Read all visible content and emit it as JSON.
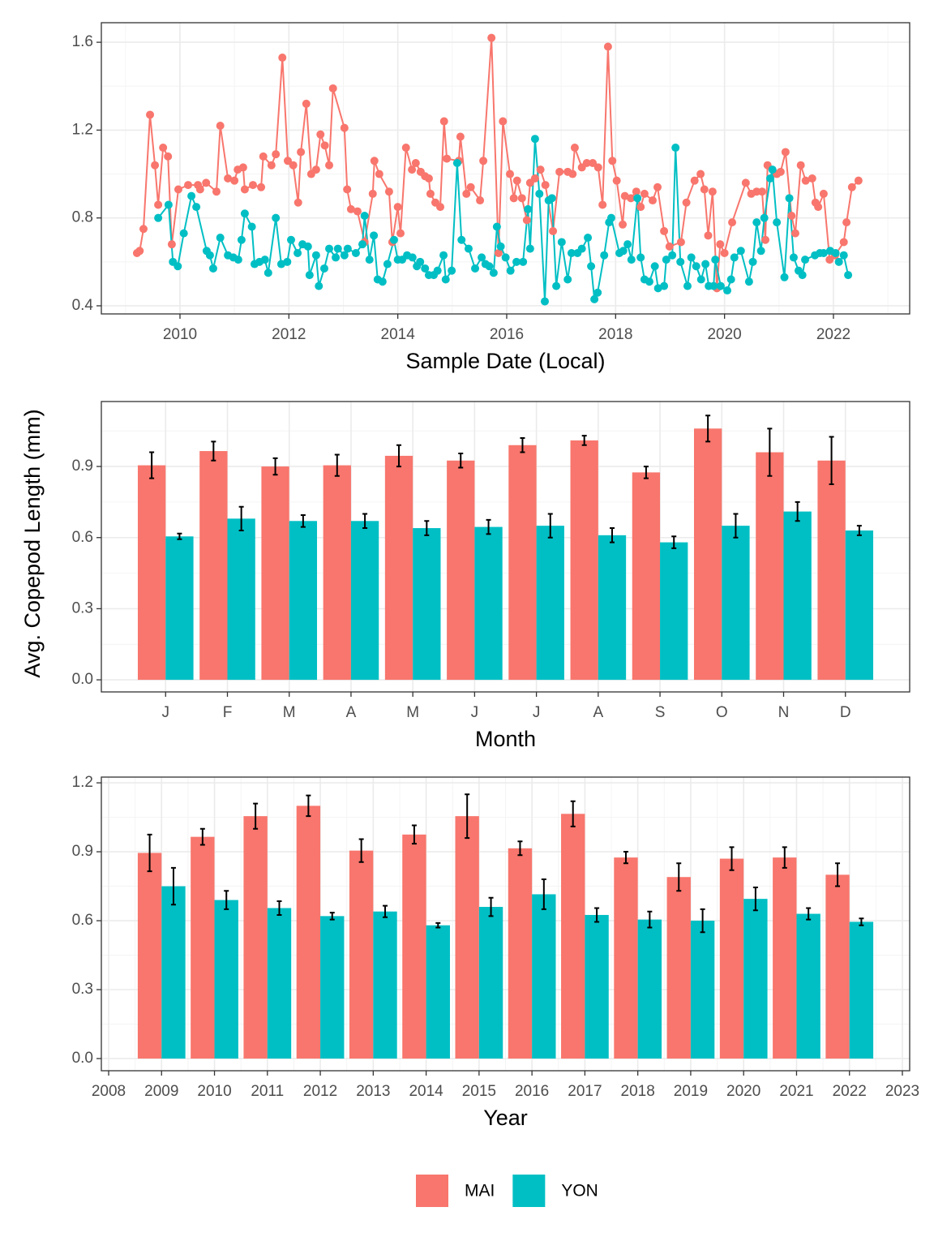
{
  "chart_data": [
    {
      "type": "line",
      "xlabel": "Sample Date (Local)",
      "xlim": [
        2008.556,
        2023.4
      ],
      "xticks": [
        2010,
        2012,
        2014,
        2016,
        2018,
        2020,
        2022
      ],
      "ylim": [
        0.363,
        1.689
      ],
      "yticks": [
        0.4,
        0.8,
        1.2,
        1.6
      ],
      "grid": true,
      "series": [
        {
          "color": "#F8766D",
          "x": [
            2009.21,
            2009.26,
            2009.33,
            2009.45,
            2009.54,
            2009.6,
            2009.69,
            2009.78,
            2009.85,
            2009.97,
            2010.15,
            2010.33,
            2010.37,
            2010.48,
            2010.67,
            2010.74,
            2010.88,
            2011.0,
            2011.06,
            2011.16,
            2011.19,
            2011.34,
            2011.49,
            2011.53,
            2011.68,
            2011.76,
            2011.88,
            2011.98,
            2012.08,
            2012.17,
            2012.22,
            2012.32,
            2012.41,
            2012.5,
            2012.58,
            2012.66,
            2012.74,
            2012.81,
            2013.02,
            2013.07,
            2013.14,
            2013.26,
            2013.39,
            2013.54,
            2013.57,
            2013.66,
            2013.84,
            2013.9,
            2014.0,
            2014.05,
            2014.15,
            2014.26,
            2014.33,
            2014.42,
            2014.5,
            2014.57,
            2014.6,
            2014.69,
            2014.78,
            2014.85,
            2014.9,
            2015.12,
            2015.15,
            2015.26,
            2015.34,
            2015.51,
            2015.57,
            2015.72,
            2015.85,
            2015.93,
            2016.06,
            2016.13,
            2016.19,
            2016.28,
            2016.37,
            2016.43,
            2016.52,
            2016.62,
            2016.71,
            2016.85,
            2016.97,
            2017.12,
            2017.21,
            2017.25,
            2017.38,
            2017.47,
            2017.58,
            2017.68,
            2017.76,
            2017.86,
            2017.94,
            2018.02,
            2018.13,
            2018.17,
            2018.28,
            2018.38,
            2018.46,
            2018.53,
            2018.68,
            2018.77,
            2018.89,
            2018.99,
            2019.2,
            2019.3,
            2019.45,
            2019.56,
            2019.63,
            2019.7,
            2019.78,
            2019.86,
            2019.92,
            2020.0,
            2020.14,
            2020.39,
            2020.49,
            2020.59,
            2020.69,
            2020.75,
            2020.79,
            2020.96,
            2021.03,
            2021.12,
            2021.23,
            2021.3,
            2021.4,
            2021.49,
            2021.61,
            2021.67,
            2021.72,
            2021.82,
            2021.93,
            2022.03,
            2022.19,
            2022.24,
            2022.34,
            2022.46
          ],
          "values": [
            0.64,
            0.65,
            0.75,
            1.27,
            1.04,
            0.86,
            1.12,
            1.08,
            0.68,
            0.93,
            0.95,
            0.95,
            0.93,
            0.96,
            0.92,
            1.22,
            0.98,
            0.97,
            1.02,
            1.03,
            0.93,
            0.95,
            0.94,
            1.08,
            1.04,
            1.09,
            1.53,
            1.06,
            1.04,
            0.87,
            1.1,
            1.32,
            1.0,
            1.02,
            1.18,
            1.13,
            1.04,
            1.39,
            1.21,
            0.93,
            0.84,
            0.83,
            0.69,
            0.91,
            1.06,
            1.0,
            0.92,
            0.69,
            0.85,
            0.73,
            1.12,
            1.02,
            1.05,
            1.01,
            0.99,
            0.98,
            0.91,
            0.87,
            0.85,
            1.24,
            1.07,
            1.06,
            1.17,
            0.91,
            0.94,
            0.88,
            1.06,
            1.62,
            0.64,
            1.24,
            1.0,
            0.89,
            0.97,
            0.89,
            0.79,
            0.96,
            0.98,
            1.02,
            0.95,
            0.74,
            1.01,
            1.01,
            1.0,
            1.12,
            1.03,
            1.05,
            1.05,
            1.03,
            0.86,
            1.58,
            1.06,
            0.97,
            0.77,
            0.9,
            0.89,
            0.92,
            0.85,
            0.91,
            0.88,
            0.94,
            0.74,
            0.67,
            0.69,
            0.87,
            0.97,
            1.0,
            0.93,
            0.72,
            0.92,
            0.48,
            0.68,
            0.64,
            0.78,
            0.96,
            0.91,
            0.92,
            0.92,
            0.7,
            1.04,
            1.0,
            1.01,
            1.1,
            0.81,
            0.73,
            1.04,
            0.97,
            0.98,
            0.87,
            0.85,
            0.91,
            0.61,
            0.63,
            0.69,
            0.78,
            0.94,
            0.97
          ]
        },
        {
          "color": "#00BFC4",
          "x": [
            2009.6,
            2009.79,
            2009.87,
            2009.96,
            2010.07,
            2010.21,
            2010.3,
            2010.49,
            2010.55,
            2010.61,
            2010.74,
            2010.88,
            2010.98,
            2011.07,
            2011.13,
            2011.19,
            2011.32,
            2011.37,
            2011.46,
            2011.56,
            2011.62,
            2011.76,
            2011.86,
            2011.97,
            2012.04,
            2012.16,
            2012.25,
            2012.35,
            2012.38,
            2012.5,
            2012.55,
            2012.65,
            2012.74,
            2012.86,
            2012.9,
            2013.02,
            2013.08,
            2013.23,
            2013.35,
            2013.39,
            2013.48,
            2013.56,
            2013.63,
            2013.72,
            2013.81,
            2013.93,
            2014.0,
            2014.08,
            2014.17,
            2014.27,
            2014.35,
            2014.41,
            2014.5,
            2014.57,
            2014.66,
            2014.73,
            2014.84,
            2014.88,
            2014.99,
            2015.09,
            2015.17,
            2015.3,
            2015.42,
            2015.54,
            2015.61,
            2015.68,
            2015.76,
            2015.82,
            2015.89,
            2015.98,
            2016.07,
            2016.18,
            2016.3,
            2016.39,
            2016.43,
            2016.52,
            2016.6,
            2016.7,
            2016.77,
            2016.83,
            2016.91,
            2017.01,
            2017.12,
            2017.19,
            2017.3,
            2017.38,
            2017.49,
            2017.55,
            2017.61,
            2017.67,
            2017.79,
            2017.88,
            2017.92,
            2018.07,
            2018.14,
            2018.22,
            2018.29,
            2018.4,
            2018.46,
            2018.53,
            2018.62,
            2018.72,
            2018.78,
            2018.89,
            2018.93,
            2019.04,
            2019.1,
            2019.19,
            2019.32,
            2019.39,
            2019.48,
            2019.57,
            2019.65,
            2019.71,
            2019.8,
            2019.83,
            2019.93,
            2020.05,
            2020.12,
            2020.18,
            2020.3,
            2020.45,
            2020.52,
            2020.59,
            2020.67,
            2020.73,
            2020.84,
            2020.88,
            2020.96,
            2021.1,
            2021.19,
            2021.27,
            2021.36,
            2021.43,
            2021.48,
            2021.66,
            2021.75,
            2021.82,
            2021.94,
            2022.04,
            2022.1,
            2022.19,
            2022.27
          ],
          "values": [
            0.8,
            0.86,
            0.6,
            0.58,
            0.73,
            0.9,
            0.85,
            0.65,
            0.63,
            0.57,
            0.71,
            0.63,
            0.62,
            0.61,
            0.7,
            0.82,
            0.76,
            0.59,
            0.6,
            0.61,
            0.55,
            0.8,
            0.59,
            0.6,
            0.7,
            0.64,
            0.68,
            0.67,
            0.54,
            0.63,
            0.49,
            0.57,
            0.66,
            0.62,
            0.66,
            0.63,
            0.66,
            0.64,
            0.68,
            0.81,
            0.61,
            0.72,
            0.52,
            0.51,
            0.59,
            0.7,
            0.61,
            0.61,
            0.63,
            0.62,
            0.58,
            0.6,
            0.57,
            0.54,
            0.54,
            0.56,
            0.63,
            0.52,
            0.56,
            1.05,
            0.7,
            0.66,
            0.57,
            0.62,
            0.59,
            0.58,
            0.55,
            0.76,
            0.67,
            0.62,
            0.56,
            0.6,
            0.6,
            0.84,
            0.66,
            1.16,
            0.91,
            0.42,
            0.88,
            0.89,
            0.49,
            0.69,
            0.52,
            0.64,
            0.64,
            0.66,
            0.71,
            0.58,
            0.43,
            0.46,
            0.63,
            0.78,
            0.8,
            0.64,
            0.65,
            0.68,
            0.61,
            0.89,
            0.62,
            0.52,
            0.51,
            0.58,
            0.48,
            0.49,
            0.61,
            0.63,
            1.12,
            0.6,
            0.49,
            0.62,
            0.58,
            0.52,
            0.59,
            0.49,
            0.49,
            0.61,
            0.49,
            0.47,
            0.52,
            0.62,
            0.65,
            0.51,
            0.6,
            0.78,
            0.65,
            0.8,
            0.98,
            1.02,
            0.78,
            0.53,
            0.89,
            0.62,
            0.56,
            0.54,
            0.61,
            0.63,
            0.64,
            0.64,
            0.65,
            0.64,
            0.6,
            0.63,
            0.54
          ]
        }
      ]
    },
    {
      "type": "bar",
      "xlabel": "Month",
      "ylabel": "Avg. Copepod Length (mm)",
      "categories": [
        "J",
        "F",
        "M",
        "A",
        "M",
        "J",
        "J",
        "A",
        "S",
        "O",
        "N",
        "D"
      ],
      "ylim": [
        -0.051,
        1.174
      ],
      "yticks": [
        {
          "value": 0,
          "label": "0.0"
        },
        0.3,
        0.6,
        0.9
      ],
      "grid": true,
      "series": [
        {
          "color": "#F8766D",
          "values": [
            0.905,
            0.965,
            0.9,
            0.905,
            0.945,
            0.925,
            0.99,
            1.01,
            0.875,
            1.06,
            0.96,
            0.925
          ],
          "errors": [
            0.055,
            0.04,
            0.035,
            0.045,
            0.045,
            0.03,
            0.03,
            0.02,
            0.025,
            0.055,
            0.1,
            0.1
          ]
        },
        {
          "color": "#00BFC4",
          "values": [
            0.605,
            0.68,
            0.67,
            0.67,
            0.64,
            0.645,
            0.65,
            0.61,
            0.58,
            0.65,
            0.71,
            0.63
          ],
          "errors": [
            0.012,
            0.05,
            0.025,
            0.03,
            0.03,
            0.03,
            0.05,
            0.03,
            0.025,
            0.05,
            0.04,
            0.02
          ]
        }
      ]
    },
    {
      "type": "bar",
      "xlabel": "Year",
      "x": [
        2009,
        2010,
        2011,
        2012,
        2013,
        2014,
        2015,
        2016,
        2017,
        2018,
        2019,
        2020,
        2021,
        2022
      ],
      "xlim": [
        2007.862,
        2023.138
      ],
      "xticks": [
        2008,
        2009,
        2010,
        2011,
        2012,
        2013,
        2014,
        2015,
        2016,
        2017,
        2018,
        2019,
        2020,
        2021,
        2022,
        2023
      ],
      "ylim": [
        -0.053,
        1.225
      ],
      "yticks": [
        {
          "value": 0,
          "label": "0.0"
        },
        0.3,
        0.6,
        0.9,
        1.2
      ],
      "grid": true,
      "legend": "bottom",
      "series": [
        {
          "name": "MAI",
          "color": "#F8766D",
          "values": [
            0.895,
            0.965,
            1.055,
            1.1,
            0.905,
            0.975,
            1.055,
            0.915,
            1.065,
            0.875,
            0.79,
            0.87,
            0.875,
            0.8
          ],
          "errors": [
            0.08,
            0.035,
            0.055,
            0.045,
            0.05,
            0.04,
            0.095,
            0.03,
            0.055,
            0.025,
            0.06,
            0.05,
            0.045,
            0.05
          ]
        },
        {
          "name": "YON",
          "color": "#00BFC4",
          "values": [
            0.75,
            0.69,
            0.655,
            0.62,
            0.64,
            0.58,
            0.66,
            0.715,
            0.625,
            0.605,
            0.6,
            0.695,
            0.63,
            0.595
          ],
          "errors": [
            0.08,
            0.04,
            0.03,
            0.015,
            0.025,
            0.01,
            0.04,
            0.065,
            0.03,
            0.035,
            0.05,
            0.05,
            0.025,
            0.015
          ]
        }
      ]
    }
  ]
}
